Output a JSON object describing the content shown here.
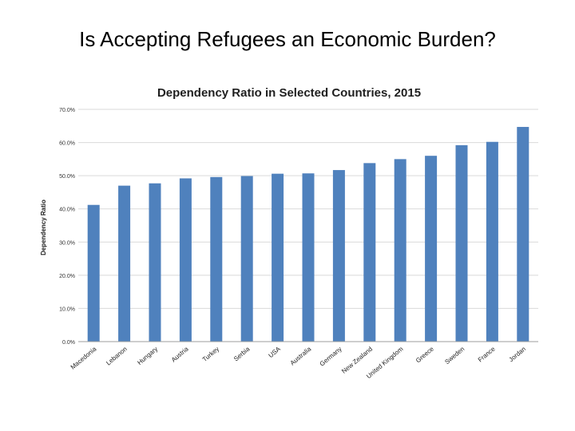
{
  "slide": {
    "title": "Is Accepting Refugees an Economic Burden?"
  },
  "chart_data": {
    "type": "bar",
    "title": "Dependency Ratio in Selected Countries, 2015",
    "xlabel": "",
    "ylabel": "Dependency Ratio",
    "ylim": [
      0,
      70
    ],
    "yticks": [
      "0.0%",
      "10.0%",
      "20.0%",
      "30.0%",
      "40.0%",
      "50.0%",
      "60.0%",
      "70.0%"
    ],
    "grid": true,
    "categories": [
      "Macedonia",
      "Lebanon",
      "Hungary",
      "Austria",
      "Turkey",
      "Serbia",
      "USA",
      "Australia",
      "Germany",
      "New Zealand",
      "United Kingdom",
      "Greece",
      "Sweden",
      "France",
      "Jordan"
    ],
    "values": [
      41.2,
      47.0,
      47.7,
      49.2,
      49.6,
      49.9,
      50.6,
      50.7,
      51.7,
      53.8,
      55.0,
      56.0,
      59.2,
      60.2,
      64.7
    ],
    "bar_color": "#4f81bd",
    "grid_color": "#d9d9d9"
  }
}
